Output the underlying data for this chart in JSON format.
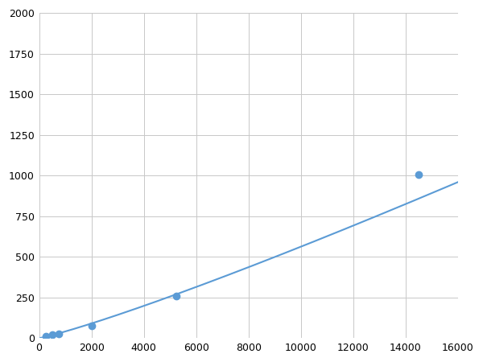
{
  "x": [
    250,
    500,
    750,
    2000,
    5250,
    14500
  ],
  "y": [
    10,
    20,
    25,
    75,
    260,
    1005
  ],
  "line_color": "#5b9bd5",
  "marker_color": "#5b9bd5",
  "marker_size": 6,
  "marker_style": "o",
  "linewidth": 1.5,
  "xlim": [
    0,
    16000
  ],
  "ylim": [
    0,
    2000
  ],
  "xticks": [
    0,
    2000,
    4000,
    6000,
    8000,
    10000,
    12000,
    14000,
    16000
  ],
  "yticks": [
    0,
    250,
    500,
    750,
    1000,
    1250,
    1500,
    1750,
    2000
  ],
  "grid_color": "#c8c8c8",
  "grid_linewidth": 0.7,
  "bg_color": "#ffffff",
  "tick_fontsize": 9,
  "figsize": [
    6.0,
    4.5
  ],
  "dpi": 100
}
